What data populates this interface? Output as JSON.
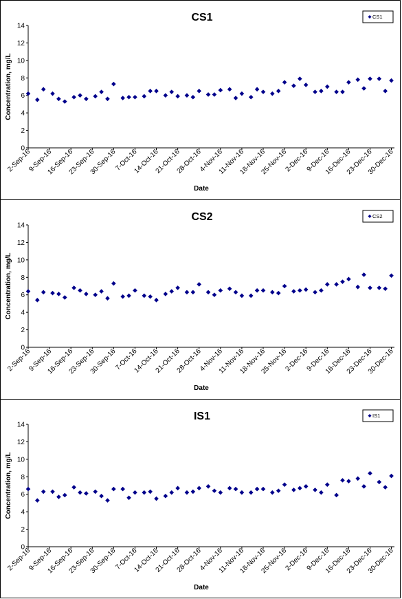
{
  "chart_data": [
    {
      "type": "scatter",
      "title": "CS1",
      "xlabel": "Date",
      "ylabel": "Concentration, mg/L",
      "ylim": [
        0,
        14
      ],
      "yticks": [
        0,
        2,
        4,
        6,
        8,
        10,
        12,
        14
      ],
      "xlim_days": [
        0,
        120
      ],
      "xtick_labels": [
        "2-Sep-16",
        "9-Sep-16",
        "16-Sep-16",
        "23-Sep-16",
        "30-Sep-16",
        "7-Oct-16",
        "14-Oct-16",
        "21-Oct-16",
        "28-Oct-16",
        "4-Nov-16",
        "11-Nov-16",
        "18-Nov-16",
        "25-Nov-16",
        "2-Dec-16",
        "9-Dec-16",
        "16-Dec-16",
        "23-Dec-16",
        "30-Dec-16"
      ],
      "marker_color": "#00008B",
      "legend_position": "top-right",
      "grid": false,
      "series": [
        {
          "name": "CS1",
          "x": [
            "2-Sep-16",
            "5-Sep-16",
            "7-Sep-16",
            "10-Sep-16",
            "12-Sep-16",
            "14-Sep-16",
            "17-Sep-16",
            "19-Sep-16",
            "21-Sep-16",
            "24-Sep-16",
            "26-Sep-16",
            "28-Sep-16",
            "30-Sep-16",
            "3-Oct-16",
            "5-Oct-16",
            "7-Oct-16",
            "10-Oct-16",
            "12-Oct-16",
            "14-Oct-16",
            "17-Oct-16",
            "19-Oct-16",
            "21-Oct-16",
            "24-Oct-16",
            "26-Oct-16",
            "28-Oct-16",
            "31-Oct-16",
            "2-Nov-16",
            "4-Nov-16",
            "7-Nov-16",
            "9-Nov-16",
            "11-Nov-16",
            "14-Nov-16",
            "16-Nov-16",
            "18-Nov-16",
            "21-Nov-16",
            "23-Nov-16",
            "25-Nov-16",
            "28-Nov-16",
            "30-Nov-16",
            "2-Dec-16",
            "5-Dec-16",
            "7-Dec-16",
            "9-Dec-16",
            "12-Dec-16",
            "14-Dec-16",
            "16-Dec-16",
            "19-Dec-16",
            "21-Dec-16",
            "23-Dec-16",
            "26-Dec-16",
            "28-Dec-16",
            "30-Dec-16"
          ],
          "y": [
            6.2,
            5.5,
            6.7,
            6.2,
            5.6,
            5.3,
            5.8,
            6.0,
            5.6,
            5.9,
            6.4,
            5.6,
            7.3,
            5.7,
            5.8,
            5.8,
            5.9,
            6.5,
            6.5,
            6.0,
            6.4,
            5.9,
            6.0,
            5.8,
            6.5,
            6.1,
            6.1,
            6.6,
            6.7,
            5.7,
            6.2,
            5.8,
            6.7,
            6.4,
            6.2,
            6.5,
            7.5,
            7.1,
            7.9,
            7.2,
            6.4,
            6.5,
            7.0,
            6.4,
            6.4,
            7.5,
            7.8,
            6.8,
            7.9,
            7.9,
            6.5,
            7.7
          ]
        }
      ]
    },
    {
      "type": "scatter",
      "title": "CS2",
      "xlabel": "Date",
      "ylabel": "Concentration, mg/L",
      "ylim": [
        0,
        14
      ],
      "yticks": [
        0,
        2,
        4,
        6,
        8,
        10,
        12,
        14
      ],
      "xlim_days": [
        0,
        120
      ],
      "xtick_labels": [
        "2-Sep-16",
        "9-Sep-16",
        "16-Sep-16",
        "23-Sep-16",
        "30-Sep-16",
        "7-Oct-16",
        "14-Oct-16",
        "21-Oct-16",
        "28-Oct-16",
        "4-Nov-16",
        "11-Nov-16",
        "18-Nov-16",
        "25-Nov-16",
        "2-Dec-16",
        "9-Dec-16",
        "16-Dec-16",
        "23-Dec-16",
        "30-Dec-16"
      ],
      "marker_color": "#00008B",
      "legend_position": "top-right",
      "grid": false,
      "series": [
        {
          "name": "CS2",
          "x": [
            "2-Sep-16",
            "5-Sep-16",
            "7-Sep-16",
            "10-Sep-16",
            "12-Sep-16",
            "14-Sep-16",
            "17-Sep-16",
            "19-Sep-16",
            "21-Sep-16",
            "24-Sep-16",
            "26-Sep-16",
            "28-Sep-16",
            "30-Sep-16",
            "3-Oct-16",
            "5-Oct-16",
            "7-Oct-16",
            "10-Oct-16",
            "12-Oct-16",
            "14-Oct-16",
            "17-Oct-16",
            "19-Oct-16",
            "21-Oct-16",
            "24-Oct-16",
            "26-Oct-16",
            "28-Oct-16",
            "31-Oct-16",
            "2-Nov-16",
            "4-Nov-16",
            "7-Nov-16",
            "9-Nov-16",
            "11-Nov-16",
            "14-Nov-16",
            "16-Nov-16",
            "18-Nov-16",
            "21-Nov-16",
            "23-Nov-16",
            "25-Nov-16",
            "28-Nov-16",
            "30-Nov-16",
            "2-Dec-16",
            "5-Dec-16",
            "7-Dec-16",
            "9-Dec-16",
            "12-Dec-16",
            "14-Dec-16",
            "16-Dec-16",
            "19-Dec-16",
            "21-Dec-16",
            "23-Dec-16",
            "26-Dec-16",
            "28-Dec-16",
            "30-Dec-16"
          ],
          "y": [
            6.4,
            5.4,
            6.3,
            6.2,
            6.1,
            5.7,
            6.8,
            6.5,
            6.1,
            6.0,
            6.4,
            5.6,
            7.3,
            5.8,
            5.9,
            6.5,
            5.9,
            5.8,
            5.4,
            6.1,
            6.4,
            6.8,
            6.3,
            6.3,
            7.2,
            6.3,
            6.0,
            6.5,
            6.7,
            6.3,
            5.9,
            5.9,
            6.5,
            6.5,
            6.3,
            6.2,
            7.0,
            6.4,
            6.5,
            6.6,
            6.3,
            6.5,
            7.2,
            7.2,
            7.5,
            7.8,
            6.9,
            8.3,
            6.8,
            6.8,
            6.7,
            8.2
          ]
        }
      ]
    },
    {
      "type": "scatter",
      "title": "IS1",
      "xlabel": "Date",
      "ylabel": "Concentration, mg/L",
      "ylim": [
        0,
        14
      ],
      "yticks": [
        0,
        2,
        4,
        6,
        8,
        10,
        12,
        14
      ],
      "xlim_days": [
        0,
        120
      ],
      "xtick_labels": [
        "2-Sep-16",
        "9-Sep-16",
        "16-Sep-16",
        "23-Sep-16",
        "30-Sep-16",
        "7-Oct-16",
        "14-Oct-16",
        "21-Oct-16",
        "28-Oct-16",
        "4-Nov-16",
        "11-Nov-16",
        "18-Nov-16",
        "25-Nov-16",
        "2-Dec-16",
        "9-Dec-16",
        "16-Dec-16",
        "23-Dec-16",
        "30-Dec-16"
      ],
      "marker_color": "#00008B",
      "legend_position": "top-right",
      "grid": false,
      "series": [
        {
          "name": "IS1",
          "x": [
            "2-Sep-16",
            "5-Sep-16",
            "7-Sep-16",
            "10-Sep-16",
            "12-Sep-16",
            "14-Sep-16",
            "17-Sep-16",
            "19-Sep-16",
            "21-Sep-16",
            "24-Sep-16",
            "26-Sep-16",
            "28-Sep-16",
            "30-Sep-16",
            "3-Oct-16",
            "5-Oct-16",
            "7-Oct-16",
            "10-Oct-16",
            "12-Oct-16",
            "14-Oct-16",
            "17-Oct-16",
            "19-Oct-16",
            "21-Oct-16",
            "24-Oct-16",
            "26-Oct-16",
            "28-Oct-16",
            "31-Oct-16",
            "2-Nov-16",
            "4-Nov-16",
            "7-Nov-16",
            "9-Nov-16",
            "11-Nov-16",
            "14-Nov-16",
            "16-Nov-16",
            "18-Nov-16",
            "21-Nov-16",
            "23-Nov-16",
            "25-Nov-16",
            "28-Nov-16",
            "30-Nov-16",
            "2-Dec-16",
            "5-Dec-16",
            "7-Dec-16",
            "9-Dec-16",
            "12-Dec-16",
            "14-Dec-16",
            "16-Dec-16",
            "19-Dec-16",
            "21-Dec-16",
            "23-Dec-16",
            "26-Dec-16",
            "28-Dec-16",
            "30-Dec-16"
          ],
          "y": [
            6.6,
            5.3,
            6.3,
            6.3,
            5.7,
            5.9,
            6.8,
            6.2,
            6.1,
            6.3,
            5.8,
            5.3,
            6.6,
            6.6,
            5.6,
            6.2,
            6.2,
            6.3,
            5.5,
            5.8,
            6.2,
            6.7,
            6.2,
            6.3,
            6.7,
            6.9,
            6.4,
            6.2,
            6.7,
            6.6,
            6.2,
            6.2,
            6.6,
            6.6,
            6.2,
            6.4,
            7.1,
            6.5,
            6.7,
            6.9,
            6.5,
            6.2,
            7.1,
            5.9,
            7.6,
            7.5,
            7.8,
            6.9,
            8.4,
            7.4,
            6.8,
            8.1
          ]
        }
      ]
    }
  ]
}
